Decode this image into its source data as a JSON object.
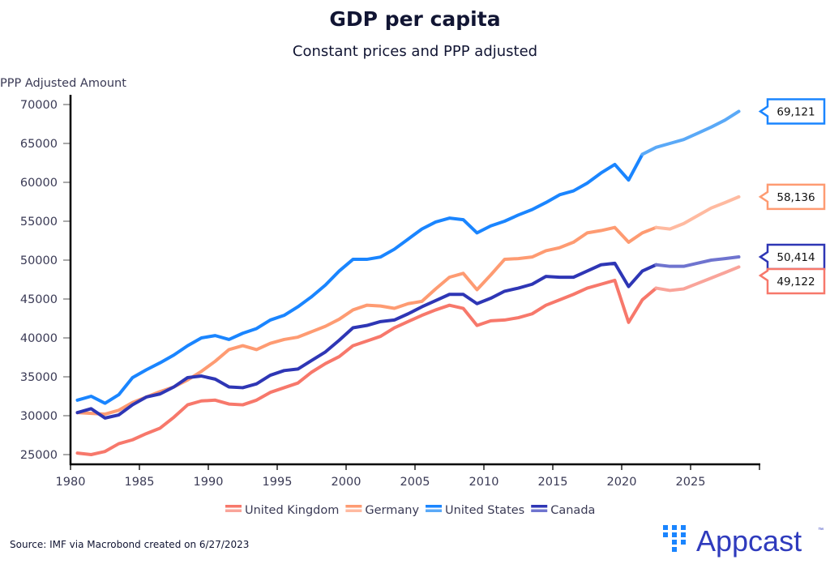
{
  "chart_data": {
    "type": "line",
    "title": "GDP per capita",
    "subtitle": "Constant prices and PPP adjusted",
    "ylabel": "PPP Adjusted Amount",
    "xlabel": "",
    "xlim": [
      1980,
      2030
    ],
    "ylim": [
      25000,
      70000
    ],
    "xticks": [
      1980,
      1985,
      1990,
      1995,
      2000,
      2005,
      2010,
      2015,
      2020,
      2025,
      2030
    ],
    "xtick_labels": [
      "1980",
      "1985",
      "1990",
      "1995",
      "2000",
      "2005",
      "2010",
      "2015",
      "2020",
      "2025",
      ""
    ],
    "yticks": [
      25000,
      30000,
      35000,
      40000,
      45000,
      50000,
      55000,
      60000,
      65000,
      70000
    ],
    "ytick_labels": [
      "25000",
      "30000",
      "35000",
      "40000",
      "45000",
      "50000",
      "55000",
      "60000",
      "65000",
      "70000"
    ],
    "grid": false,
    "legend_position": "bottom-center",
    "x": [
      1980.5,
      1981.5,
      1982.5,
      1983.5,
      1984.5,
      1985.5,
      1986.5,
      1987.5,
      1988.5,
      1989.5,
      1990.5,
      1991.5,
      1992.5,
      1993.5,
      1994.5,
      1995.5,
      1996.5,
      1997.5,
      1998.5,
      1999.5,
      2000.5,
      2001.5,
      2002.5,
      2003.5,
      2004.5,
      2005.5,
      2006.5,
      2007.5,
      2008.5,
      2009.5,
      2010.5,
      2011.5,
      2012.5,
      2013.5,
      2014.5,
      2015.5,
      2016.5,
      2017.5,
      2018.5,
      2019.5,
      2020.5,
      2021.5,
      2022.5,
      2023.5,
      2024.5,
      2025.5,
      2026.5,
      2027.5,
      2028.5
    ],
    "series": [
      {
        "name": "United Kingdom",
        "color": "#f7786b",
        "forecast_color": "#f9a49a",
        "forecast_start": 2022.5,
        "end_label": "49,122",
        "values": [
          25200,
          25000,
          25400,
          26400,
          26900,
          27700,
          28400,
          29800,
          31400,
          31900,
          32000,
          31500,
          31400,
          32000,
          33000,
          33600,
          34200,
          35600,
          36700,
          37600,
          39000,
          39600,
          40200,
          41300,
          42100,
          42900,
          43600,
          44200,
          43800,
          41600,
          42200,
          42300,
          42600,
          43100,
          44200,
          44900,
          45600,
          46400,
          46900,
          47400,
          42000,
          44900,
          46400,
          46100,
          46300,
          47000,
          47700,
          48400,
          49122
        ]
      },
      {
        "name": "Germany",
        "color": "#fe9b72",
        "forecast_color": "#ffbaa0",
        "forecast_start": 2022.5,
        "end_label": "58,136",
        "values": [
          30400,
          30300,
          30200,
          30700,
          31700,
          32400,
          33100,
          33700,
          34600,
          35700,
          37000,
          38500,
          39000,
          38500,
          39300,
          39800,
          40100,
          40800,
          41500,
          42400,
          43600,
          44200,
          44100,
          43800,
          44400,
          44700,
          46300,
          47800,
          48300,
          46200,
          48100,
          50100,
          50200,
          50400,
          51200,
          51600,
          52300,
          53500,
          53800,
          54200,
          52300,
          53500,
          54200,
          54000,
          54700,
          55700,
          56700,
          57400,
          58136
        ]
      },
      {
        "name": "United States",
        "color": "#1a85ff",
        "forecast_color": "#5aa9f7",
        "forecast_start": 2021.5,
        "end_label": "69,121",
        "values": [
          32000,
          32500,
          31600,
          32700,
          34900,
          35900,
          36800,
          37800,
          39000,
          40000,
          40300,
          39800,
          40600,
          41200,
          42300,
          42900,
          44000,
          45300,
          46800,
          48600,
          50100,
          50100,
          50400,
          51400,
          52700,
          54000,
          54900,
          55400,
          55200,
          53500,
          54400,
          55000,
          55800,
          56500,
          57400,
          58400,
          58900,
          59900,
          61200,
          62300,
          60300,
          63600,
          64500,
          65000,
          65500,
          66300,
          67100,
          68000,
          69121
        ]
      },
      {
        "name": "Canada",
        "color": "#2e36b5",
        "forecast_color": "#6f74cf",
        "forecast_start": 2022.5,
        "end_label": "50,414",
        "values": [
          30400,
          30900,
          29700,
          30100,
          31400,
          32400,
          32800,
          33700,
          34900,
          35100,
          34700,
          33700,
          33600,
          34100,
          35200,
          35800,
          36000,
          37100,
          38200,
          39700,
          41300,
          41600,
          42100,
          42300,
          43100,
          44000,
          44800,
          45600,
          45600,
          44400,
          45100,
          46000,
          46400,
          46900,
          47900,
          47800,
          47800,
          48600,
          49400,
          49600,
          46600,
          48600,
          49400,
          49200,
          49200,
          49600,
          50000,
          50200,
          50414
        ]
      }
    ]
  },
  "footer": {
    "source": "Source: IMF via Macrobond created on 6/27/2023",
    "logo_text": "Appcast",
    "logo_tm": "™",
    "logo_color": "#2f3bbd",
    "logo_icon_color": "#1a85ff"
  }
}
